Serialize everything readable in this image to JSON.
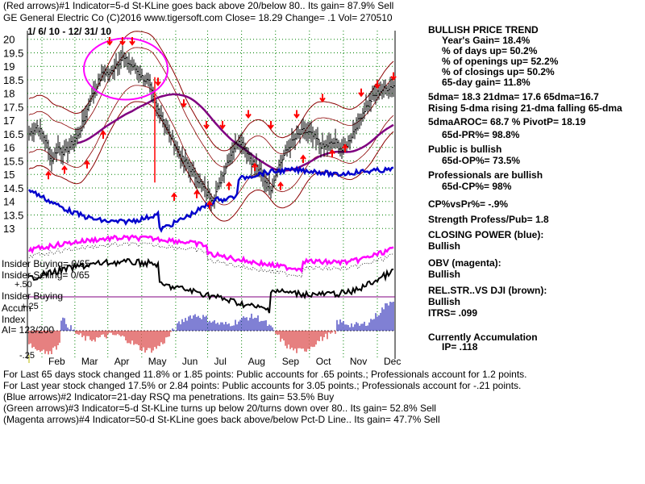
{
  "header": {
    "line1": "(Red arrows)#1 Indicator=5-d St-KLine goes back above 20/below 80.. Its gain= 87.9% Sell",
    "line2": "GE   General Electric Co  (C)2016 www.tigersoft.com     Close=  18.29  Change= .1 Vol=  270510",
    "date_range": "1/ 6/ 10 - 12/ 31/ 10"
  },
  "side_panel": [
    "BULLISH PRICE TREND",
    "Year's Gain= 18.4%",
    "% of days up= 50.2%",
    "% of openings up= 52.2%",
    "% of closings up= 50.2%",
    "65-day gain= 11.8%",
    "5dma= 18.3 21dma= 17.6 65dma=16.7",
    "Rising 5-dma rising 21-dma falling 65-dma",
    "5dmaAROC= 68.7 %  PivotP= 18.19",
    "65d-PR%= 98.8%",
    "Public is bullish",
    "65d-OP%= 73.5%",
    "Professionals are bullish",
    "65d-CP%= 98%",
    "CP%vsPr%= -.9%",
    "Strength Profess/Pub= 1.8",
    "CLOSING POWER (blue):",
    "Bullish",
    "OBV (magenta):",
    "Bullish",
    "REL.STR..VS DJI (brown):",
    "Bullish",
    "ITRS= .099",
    "Currently Accumulation",
    "IP=  .118"
  ],
  "left_labels": {
    "insider_buying": "Insider Buying= 0/65",
    "insider_selling": "Insider Selling= 0/65",
    "insider_buying2": "Insider Buying",
    "plus50": "+.50",
    "accum": "Accum",
    "plus25": "+.25",
    "index": "Index",
    "ai": "AI= 123/200",
    "minus25": "-.25"
  },
  "footer": [
    "For Last 65 days stock changed  11.8% or  1.85 points:  Public accounts for  .65 points.;  Professionals account for  1.2 points.",
    "For Last year stock changed  17.5% or  2.84 points:  Public accounts for  3.05 points.;  Professionals account for -.21 points.",
    "(Blue arrows)#2 Indicator=21-day RSQ ma penetrations.  Its gain= 53.5% Buy",
    "(Green arrows)#3 Indicator=5-d St-KLine turns up below 20/turns down over 80.. Its gain= 52.8% Sell",
    "(Magenta arrows)#4 Indicator=50-d St-KLine goes back above/below Pct-D Line.. Its gain= 47.7% Sell"
  ],
  "colors": {
    "price": "#000000",
    "bands": "#8b0000",
    "ma65": "#800080",
    "closing_power": "#0000cc",
    "obv": "#ff00ff",
    "rel_str": "#000000",
    "accum_pos": "#0000aa",
    "accum_neg": "#cc0000",
    "arrows": "#ff0000",
    "grid": "#008000",
    "highlight": "#ff00ff"
  },
  "chart_data": {
    "type": "line",
    "title": "GE General Electric Co",
    "ylim": [
      12.5,
      20.2
    ],
    "y_ticks": [
      "20",
      "19.5",
      "19",
      "18.5",
      "18",
      "17.5",
      "17",
      "16.5",
      "16",
      "15.5",
      "15",
      "14.5",
      "14",
      "13.5",
      "13"
    ],
    "months": [
      "Feb",
      "Mar",
      "Apr",
      "May",
      "Jun",
      "Jul",
      "Aug",
      "Sep",
      "Oct",
      "Nov",
      "Dec"
    ],
    "price_keypoints": [
      [
        0,
        16.5
      ],
      [
        5,
        16.8
      ],
      [
        10,
        16.3
      ],
      [
        14,
        15.5
      ],
      [
        18,
        16.0
      ],
      [
        22,
        15.8
      ],
      [
        26,
        16.1
      ],
      [
        30,
        16.4
      ],
      [
        34,
        17.0
      ],
      [
        38,
        17.8
      ],
      [
        42,
        18.3
      ],
      [
        46,
        18.8
      ],
      [
        50,
        18.7
      ],
      [
        54,
        19.1
      ],
      [
        58,
        19.3
      ],
      [
        62,
        19.1
      ],
      [
        66,
        18.9
      ],
      [
        70,
        18.6
      ],
      [
        74,
        18.4
      ],
      [
        78,
        17.6
      ],
      [
        82,
        17.2
      ],
      [
        86,
        16.6
      ],
      [
        90,
        16.2
      ],
      [
        94,
        15.6
      ],
      [
        98,
        15.4
      ],
      [
        102,
        15.0
      ],
      [
        106,
        14.7
      ],
      [
        110,
        14.3
      ],
      [
        114,
        14.1
      ],
      [
        118,
        14.6
      ],
      [
        122,
        15.3
      ],
      [
        126,
        15.9
      ],
      [
        130,
        16.3
      ],
      [
        134,
        16.0
      ],
      [
        138,
        15.5
      ],
      [
        142,
        15.2
      ],
      [
        146,
        14.8
      ],
      [
        150,
        14.5
      ],
      [
        154,
        15.2
      ],
      [
        158,
        15.7
      ],
      [
        162,
        16.1
      ],
      [
        166,
        16.4
      ],
      [
        170,
        16.6
      ],
      [
        174,
        16.5
      ],
      [
        178,
        16.3
      ],
      [
        182,
        16.0
      ],
      [
        186,
        16.1
      ],
      [
        190,
        16.2
      ],
      [
        194,
        15.9
      ],
      [
        198,
        16.2
      ],
      [
        202,
        16.7
      ],
      [
        206,
        17.2
      ],
      [
        210,
        17.6
      ],
      [
        214,
        17.9
      ],
      [
        218,
        18.1
      ],
      [
        222,
        18.2
      ],
      [
        226,
        18.3
      ]
    ],
    "series": [
      {
        "name": "Closing Power (blue)",
        "trend": "bullish"
      },
      {
        "name": "OBV (magenta)",
        "trend": "bullish"
      },
      {
        "name": "Rel. Str. vs DJI (brown)",
        "trend": "bullish"
      },
      {
        "name": "Accumulation Index",
        "value": 0.118
      }
    ]
  }
}
